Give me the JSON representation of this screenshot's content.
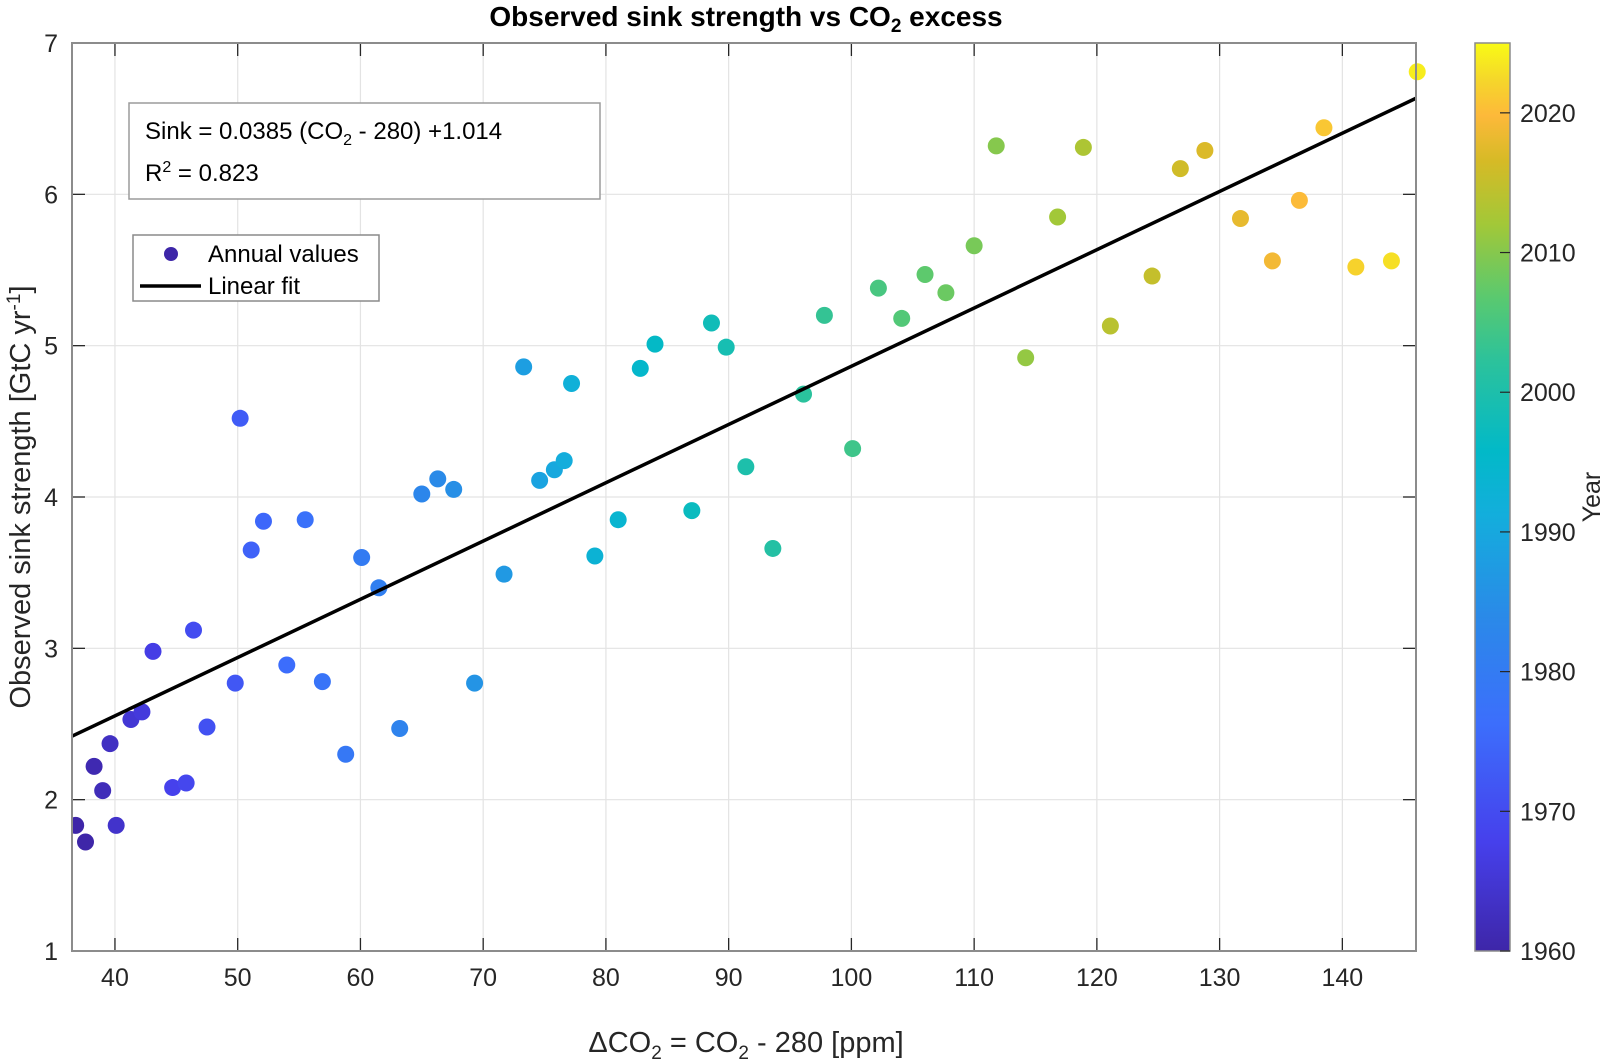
{
  "chart_data": {
    "type": "scatter",
    "title": {
      "main": "Observed sink strength vs CO",
      "sub": "2",
      "tail": " excess"
    },
    "xlabel": {
      "pre": "ΔCO",
      "sub1": "2",
      "mid": " = CO",
      "sub2": "2",
      "post": " - 280 [ppm]"
    },
    "ylabel": {
      "main": "Observed sink strength [GtC yr",
      "sup": "-1",
      "post": "]"
    },
    "xlim": [
      36.5,
      146
    ],
    "ylim": [
      1,
      7
    ],
    "xticks": [
      40,
      50,
      60,
      70,
      80,
      90,
      100,
      110,
      120,
      130,
      140
    ],
    "yticks": [
      1,
      2,
      3,
      4,
      5,
      6,
      7
    ],
    "grid": true,
    "colorbar": {
      "label": "Year",
      "range": [
        1960,
        2025
      ],
      "ticks": [
        1960,
        1970,
        1980,
        1990,
        2000,
        2010,
        2020
      ],
      "colormap": "parula"
    },
    "annotation": {
      "line1": {
        "pre": "Sink = 0.0385 (CO",
        "sub": "2",
        "post": " - 280) +1.014"
      },
      "line2": {
        "pre": "R",
        "sup": "2",
        "post": " = 0.823"
      },
      "placement": "top-left"
    },
    "legend": {
      "placement": "upper-left",
      "entries": [
        {
          "label": "Annual values",
          "marker": "circle",
          "color": "#3d26a8"
        },
        {
          "label": "Linear fit",
          "marker": "line",
          "color": "#000000"
        }
      ]
    },
    "fit": {
      "slope": 0.0385,
      "intercept": 1.014,
      "x_range": [
        36.5,
        146
      ],
      "color": "#000000"
    },
    "series": [
      {
        "name": "Annual values",
        "points": [
          {
            "year": 1959,
            "x": 36.8,
            "y": 1.83
          },
          {
            "year": 1960,
            "x": 37.6,
            "y": 1.72
          },
          {
            "year": 1961,
            "x": 38.3,
            "y": 2.22
          },
          {
            "year": 1962,
            "x": 39.0,
            "y": 2.06
          },
          {
            "year": 1963,
            "x": 39.6,
            "y": 2.37
          },
          {
            "year": 1964,
            "x": 40.1,
            "y": 1.83
          },
          {
            "year": 1965,
            "x": 41.3,
            "y": 2.53
          },
          {
            "year": 1966,
            "x": 42.2,
            "y": 2.58
          },
          {
            "year": 1967,
            "x": 43.1,
            "y": 2.98
          },
          {
            "year": 1968,
            "x": 44.7,
            "y": 2.08
          },
          {
            "year": 1969,
            "x": 45.8,
            "y": 2.11
          },
          {
            "year": 1970,
            "x": 46.4,
            "y": 3.12
          },
          {
            "year": 1971,
            "x": 47.5,
            "y": 2.48
          },
          {
            "year": 1972,
            "x": 49.8,
            "y": 2.77
          },
          {
            "year": 1973,
            "x": 50.2,
            "y": 4.52
          },
          {
            "year": 1974,
            "x": 51.1,
            "y": 3.65
          },
          {
            "year": 1975,
            "x": 52.1,
            "y": 3.84
          },
          {
            "year": 1976,
            "x": 54.0,
            "y": 2.89
          },
          {
            "year": 1977,
            "x": 55.5,
            "y": 3.85
          },
          {
            "year": 1978,
            "x": 56.9,
            "y": 2.78
          },
          {
            "year": 1979,
            "x": 58.8,
            "y": 2.3
          },
          {
            "year": 1980,
            "x": 60.1,
            "y": 3.6
          },
          {
            "year": 1981,
            "x": 61.5,
            "y": 3.4
          },
          {
            "year": 1982,
            "x": 63.2,
            "y": 2.47
          },
          {
            "year": 1983,
            "x": 65.0,
            "y": 4.02
          },
          {
            "year": 1984,
            "x": 66.3,
            "y": 4.12
          },
          {
            "year": 1985,
            "x": 67.6,
            "y": 4.05
          },
          {
            "year": 1986,
            "x": 69.3,
            "y": 2.77
          },
          {
            "year": 1987,
            "x": 71.7,
            "y": 3.49
          },
          {
            "year": 1988,
            "x": 73.3,
            "y": 4.86
          },
          {
            "year": 1989,
            "x": 74.6,
            "y": 4.11
          },
          {
            "year": 1990,
            "x": 75.8,
            "y": 4.18
          },
          {
            "year": 1991,
            "x": 76.6,
            "y": 4.24
          },
          {
            "year": 1992,
            "x": 77.2,
            "y": 4.75
          },
          {
            "year": 1993,
            "x": 79.1,
            "y": 3.61
          },
          {
            "year": 1994,
            "x": 81.0,
            "y": 3.85
          },
          {
            "year": 1995,
            "x": 82.8,
            "y": 4.85
          },
          {
            "year": 1996,
            "x": 84.0,
            "y": 5.01
          },
          {
            "year": 1997,
            "x": 87.0,
            "y": 3.91
          },
          {
            "year": 1998,
            "x": 88.6,
            "y": 5.15
          },
          {
            "year": 1999,
            "x": 89.8,
            "y": 4.99
          },
          {
            "year": 2000,
            "x": 91.4,
            "y": 4.2
          },
          {
            "year": 2001,
            "x": 93.6,
            "y": 3.66
          },
          {
            "year": 2002,
            "x": 96.1,
            "y": 4.68
          },
          {
            "year": 2003,
            "x": 97.8,
            "y": 5.2
          },
          {
            "year": 2004,
            "x": 100.1,
            "y": 4.32
          },
          {
            "year": 2005,
            "x": 102.2,
            "y": 5.38
          },
          {
            "year": 2006,
            "x": 104.1,
            "y": 5.18
          },
          {
            "year": 2007,
            "x": 106.0,
            "y": 5.47
          },
          {
            "year": 2008,
            "x": 107.7,
            "y": 5.35
          },
          {
            "year": 2009,
            "x": 110.0,
            "y": 5.66
          },
          {
            "year": 2010,
            "x": 111.8,
            "y": 6.32
          },
          {
            "year": 2011,
            "x": 114.2,
            "y": 4.92
          },
          {
            "year": 2012,
            "x": 116.8,
            "y": 5.85
          },
          {
            "year": 2013,
            "x": 118.9,
            "y": 6.31
          },
          {
            "year": 2014,
            "x": 121.1,
            "y": 5.13
          },
          {
            "year": 2015,
            "x": 124.5,
            "y": 5.46
          },
          {
            "year": 2016,
            "x": 126.8,
            "y": 6.17
          },
          {
            "year": 2017,
            "x": 128.8,
            "y": 6.29
          },
          {
            "year": 2018,
            "x": 131.7,
            "y": 5.84
          },
          {
            "year": 2019,
            "x": 134.3,
            "y": 5.56
          },
          {
            "year": 2020,
            "x": 136.5,
            "y": 5.96
          },
          {
            "year": 2021,
            "x": 138.5,
            "y": 6.44
          },
          {
            "year": 2022,
            "x": 141.1,
            "y": 5.52
          },
          {
            "year": 2023,
            "x": 144.0,
            "y": 5.56
          },
          {
            "year": 2024,
            "x": 146.1,
            "y": 6.81
          }
        ]
      }
    ]
  }
}
